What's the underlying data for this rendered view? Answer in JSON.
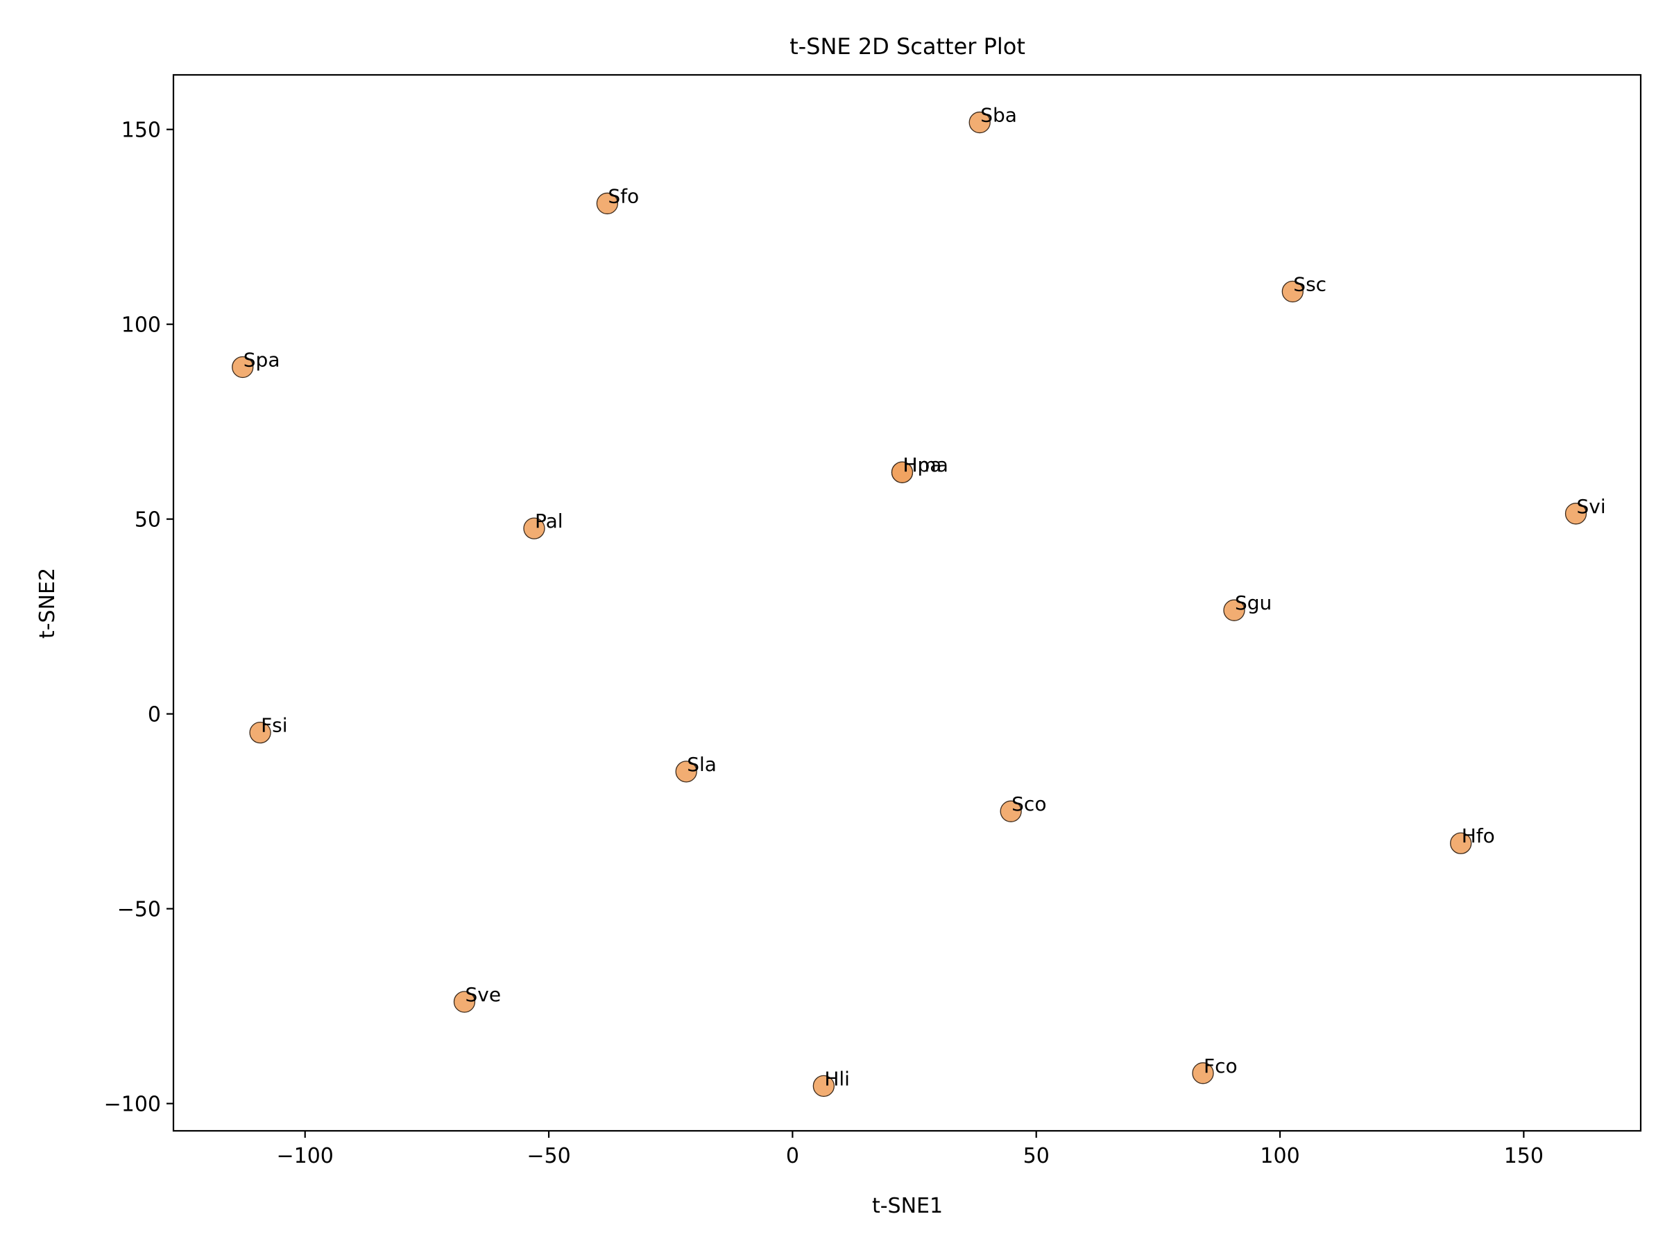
{
  "chart_data": {
    "type": "scatter",
    "title": "t-SNE 2D Scatter Plot",
    "xlabel": "t-SNE1",
    "ylabel": "t-SNE2",
    "xlim": [
      -127,
      174
    ],
    "ylim": [
      -107,
      164
    ],
    "xticks": [
      -100,
      -50,
      0,
      50,
      100,
      150
    ],
    "yticks": [
      -100,
      -50,
      0,
      50,
      100,
      150
    ],
    "xtick_labels": [
      "−100",
      "−50",
      "0",
      "50",
      "100",
      "150"
    ],
    "ytick_labels": [
      "−100",
      "−50",
      "0",
      "50",
      "100",
      "150"
    ],
    "grid": false,
    "marker_color": "#f0a25e",
    "points": [
      {
        "label": "Sba",
        "x": 38.4,
        "y": 151.8
      },
      {
        "label": "Sfo",
        "x": -38.0,
        "y": 131.0
      },
      {
        "label": "Ssc",
        "x": 102.6,
        "y": 108.4
      },
      {
        "label": "Spa",
        "x": -112.8,
        "y": 89.0
      },
      {
        "label": "Hpa",
        "x": 22.5,
        "y": 62.0
      },
      {
        "label": "Hma",
        "x": 22.5,
        "y": 62.0
      },
      {
        "label": "Svi",
        "x": 160.7,
        "y": 51.4
      },
      {
        "label": "Pal",
        "x": -53.0,
        "y": 47.6
      },
      {
        "label": "Sgu",
        "x": 90.6,
        "y": 26.6
      },
      {
        "label": "Fsi",
        "x": -109.2,
        "y": -4.8
      },
      {
        "label": "Sla",
        "x": -21.8,
        "y": -14.8
      },
      {
        "label": "Sco",
        "x": 44.8,
        "y": -25.0
      },
      {
        "label": "Hfo",
        "x": 137.1,
        "y": -33.2
      },
      {
        "label": "Sve",
        "x": -67.3,
        "y": -73.9
      },
      {
        "label": "Fco",
        "x": 84.2,
        "y": -92.2
      },
      {
        "label": "Hli",
        "x": 6.4,
        "y": -95.5
      }
    ]
  }
}
